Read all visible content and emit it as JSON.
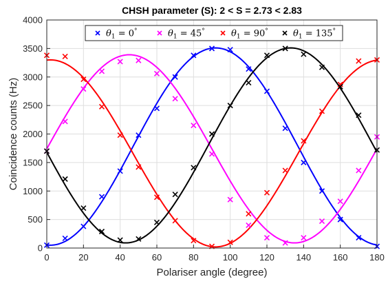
{
  "chart_data": {
    "type": "line",
    "title": "CHSH parameter (S): 2 < S = 2.73 < 2.83",
    "xlabel": "Polariser angle (degree)",
    "ylabel": "Coincidence counts (Hz)",
    "xlim": [
      0,
      180
    ],
    "ylim": [
      0,
      4000
    ],
    "xticks": [
      0,
      20,
      40,
      60,
      80,
      100,
      120,
      140,
      160,
      180
    ],
    "yticks": [
      0,
      500,
      1000,
      1500,
      2000,
      2500,
      3000,
      3500,
      4000
    ],
    "grid": true,
    "legend_position": "top",
    "series": [
      {
        "name": "θ1 = 0°",
        "legend": {
          "symbol": "θ",
          "sub": "1",
          "rest": " = 0",
          "deg": "°"
        },
        "color": "#0000ff",
        "fit": {
          "amplitude": 1730,
          "offset": 1780,
          "peak_deg": 92
        },
        "x": [
          0,
          10,
          20,
          30,
          40,
          50,
          60,
          70,
          80,
          90,
          100,
          110,
          120,
          130,
          140,
          150,
          160,
          170,
          180
        ],
        "values": [
          50,
          170,
          380,
          900,
          1350,
          1980,
          2450,
          3000,
          3380,
          3500,
          3480,
          3140,
          2750,
          2100,
          1500,
          1000,
          500,
          180,
          30
        ]
      },
      {
        "name": "θ1 = 45°",
        "legend": {
          "symbol": "θ",
          "sub": "1",
          "rest": " = 45",
          "deg": "°"
        },
        "color": "#ff00ff",
        "fit": {
          "amplitude": 1650,
          "offset": 1740,
          "peak_deg": 45
        },
        "x": [
          0,
          10,
          20,
          30,
          40,
          50,
          60,
          70,
          80,
          90,
          100,
          110,
          120,
          130,
          140,
          150,
          160,
          170,
          180
        ],
        "values": [
          1700,
          2220,
          2790,
          3100,
          3270,
          3290,
          3060,
          2620,
          2150,
          1650,
          850,
          400,
          180,
          90,
          180,
          470,
          820,
          1360,
          1950
        ]
      },
      {
        "name": "θ1 = 90°",
        "legend": {
          "symbol": "θ",
          "sub": "1",
          "rest": " = 90",
          "deg": "°"
        },
        "color": "#ff0000",
        "fit": {
          "amplitude": 1640,
          "offset": 1660,
          "peak_deg": 182
        },
        "x": [
          0,
          10,
          20,
          30,
          40,
          50,
          60,
          70,
          80,
          90,
          100,
          110,
          120,
          130,
          140,
          150,
          160,
          170,
          180
        ],
        "values": [
          3380,
          3360,
          2960,
          2480,
          1980,
          1420,
          890,
          480,
          130,
          30,
          100,
          600,
          970,
          1360,
          1880,
          2400,
          2870,
          3280,
          3300
        ]
      },
      {
        "name": "θ1 = 135°",
        "legend": {
          "symbol": "θ",
          "sub": "1",
          "rest": " = 135",
          "deg": "°"
        },
        "color": "#000000",
        "fit": {
          "amplitude": 1710,
          "offset": 1800,
          "peak_deg": 133
        },
        "x": [
          0,
          10,
          20,
          30,
          40,
          50,
          60,
          70,
          80,
          90,
          100,
          110,
          120,
          130,
          140,
          150,
          160,
          170,
          180
        ],
        "values": [
          1700,
          1210,
          700,
          290,
          140,
          160,
          450,
          940,
          1410,
          2000,
          2500,
          2900,
          3380,
          3500,
          3400,
          3170,
          2830,
          2330,
          1720
        ]
      }
    ]
  }
}
